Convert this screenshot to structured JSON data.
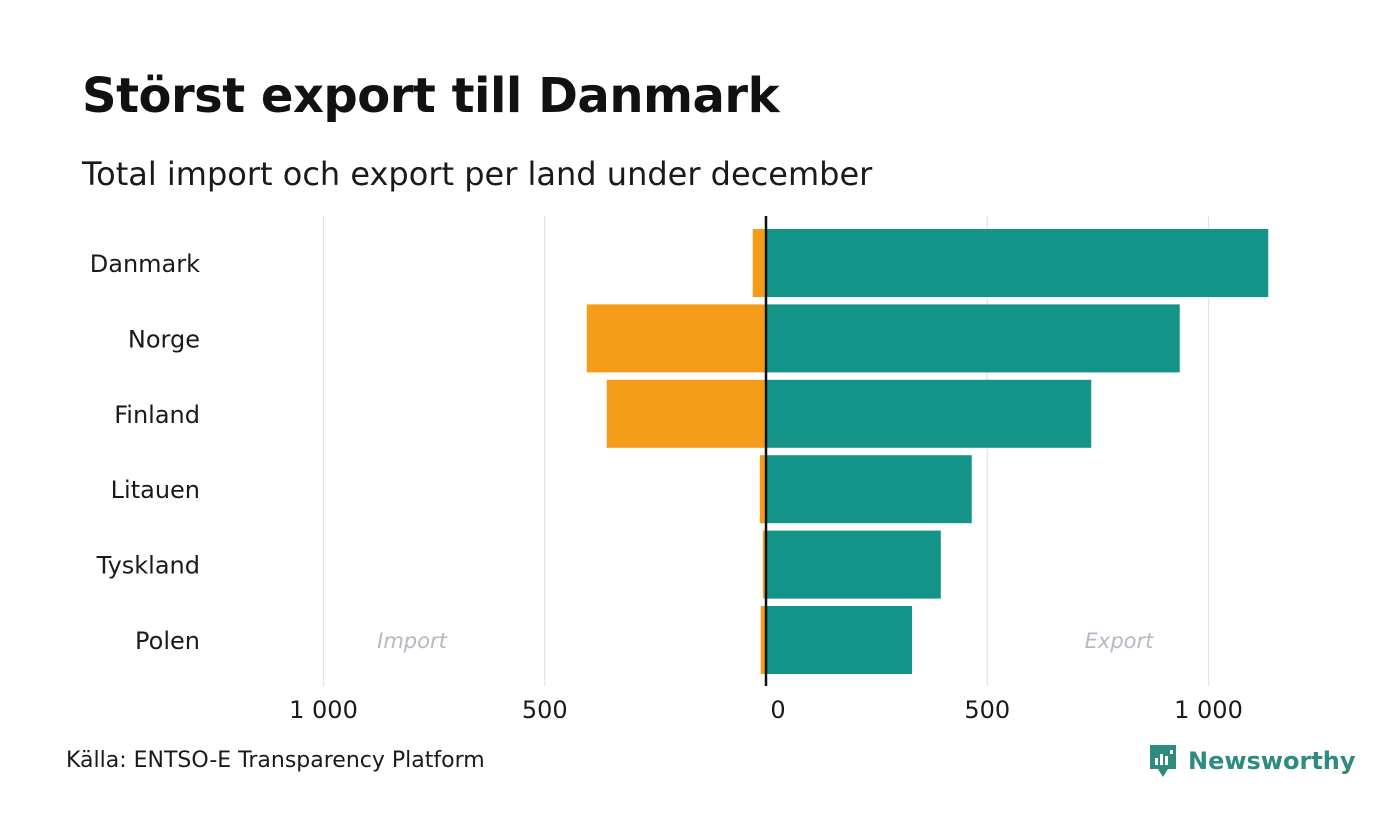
{
  "header": {
    "title": "Störst export till Danmark",
    "subtitle": "Total import och export per land under december"
  },
  "footer": {
    "source": "Källa: ENTSO-E Transparency Platform",
    "brand": "Newsworthy"
  },
  "colors": {
    "import": "#f59c1a",
    "export": "#149488",
    "grid": "#e3e3e3",
    "axis": "#111111",
    "annotation": "#b8b8c4"
  },
  "chart_data": {
    "type": "bar",
    "orientation": "horizontal",
    "diverging": true,
    "categories": [
      "Danmark",
      "Norge",
      "Finland",
      "Litauen",
      "Tyskland",
      "Polen"
    ],
    "series": [
      {
        "name": "Import",
        "values": [
          30,
          405,
          360,
          14,
          7,
          12
        ]
      },
      {
        "name": "Export",
        "values": [
          1135,
          935,
          735,
          465,
          395,
          330
        ]
      }
    ],
    "xlim": [
      -1000,
      1000
    ],
    "x_ticks": [
      -1000,
      -500,
      0,
      500,
      1000
    ],
    "x_tick_labels": [
      "1 000",
      "500",
      "0",
      "500",
      "1 000"
    ],
    "annotations": [
      "Import",
      "Export"
    ],
    "grid": true
  }
}
